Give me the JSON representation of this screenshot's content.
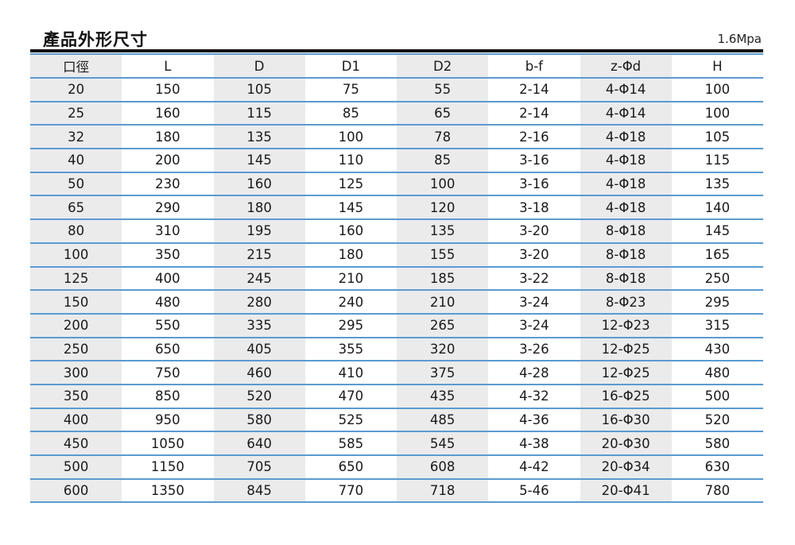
{
  "header": {
    "title": "產品外形尺寸",
    "pressure": "1.6Mpa"
  },
  "colors": {
    "rule": "#111111",
    "row_line": "#5b9bd1",
    "shaded_column": "#ebebeb"
  },
  "table": {
    "columns": [
      "口徑",
      "L",
      "D",
      "D1",
      "D2",
      "b-f",
      "z-Φd",
      "H"
    ],
    "rows": [
      [
        "20",
        "150",
        "105",
        "75",
        "55",
        "2-14",
        "4-Φ14",
        "100"
      ],
      [
        "25",
        "160",
        "115",
        "85",
        "65",
        "2-14",
        "4-Φ14",
        "100"
      ],
      [
        "32",
        "180",
        "135",
        "100",
        "78",
        "2-16",
        "4-Φ18",
        "105"
      ],
      [
        "40",
        "200",
        "145",
        "110",
        "85",
        "3-16",
        "4-Φ18",
        "115"
      ],
      [
        "50",
        "230",
        "160",
        "125",
        "100",
        "3-16",
        "4-Φ18",
        "135"
      ],
      [
        "65",
        "290",
        "180",
        "145",
        "120",
        "3-18",
        "4-Φ18",
        "140"
      ],
      [
        "80",
        "310",
        "195",
        "160",
        "135",
        "3-20",
        "8-Φ18",
        "145"
      ],
      [
        "100",
        "350",
        "215",
        "180",
        "155",
        "3-20",
        "8-Φ18",
        "165"
      ],
      [
        "125",
        "400",
        "245",
        "210",
        "185",
        "3-22",
        "8-Φ18",
        "250"
      ],
      [
        "150",
        "480",
        "280",
        "240",
        "210",
        "3-24",
        "8-Φ23",
        "295"
      ],
      [
        "200",
        "550",
        "335",
        "295",
        "265",
        "3-24",
        "12-Φ23",
        "315"
      ],
      [
        "250",
        "650",
        "405",
        "355",
        "320",
        "3-26",
        "12-Φ25",
        "430"
      ],
      [
        "300",
        "750",
        "460",
        "410",
        "375",
        "4-28",
        "12-Φ25",
        "480"
      ],
      [
        "350",
        "850",
        "520",
        "470",
        "435",
        "4-32",
        "16-Φ25",
        "500"
      ],
      [
        "400",
        "950",
        "580",
        "525",
        "485",
        "4-36",
        "16-Φ30",
        "520"
      ],
      [
        "450",
        "1050",
        "640",
        "585",
        "545",
        "4-38",
        "20-Φ30",
        "580"
      ],
      [
        "500",
        "1150",
        "705",
        "650",
        "608",
        "4-42",
        "20-Φ34",
        "630"
      ],
      [
        "600",
        "1350",
        "845",
        "770",
        "718",
        "5-46",
        "20-Φ41",
        "780"
      ]
    ]
  }
}
